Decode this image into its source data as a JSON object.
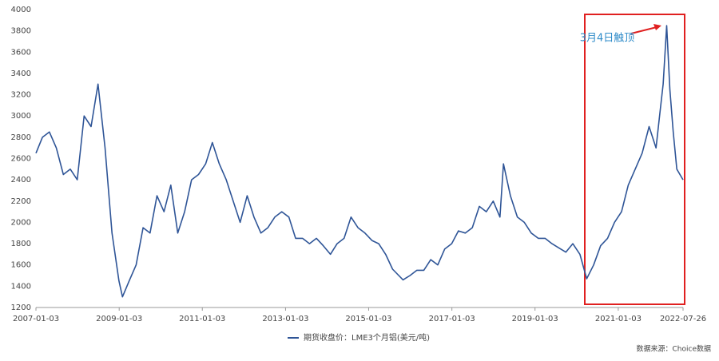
{
  "chart_data": {
    "type": "line",
    "legend": "期货收盘价：LME3个月铝(美元/吨)",
    "annotation": "3月4日触顶",
    "source": "数据来源：Choice数据",
    "x": [
      "2007-01-03",
      "2007-03",
      "2007-05",
      "2007-07",
      "2007-09",
      "2007-11",
      "2008-01",
      "2008-03",
      "2008-05",
      "2008-07",
      "2008-09",
      "2008-11",
      "2009-01",
      "2009-02",
      "2009-04",
      "2009-06",
      "2009-08",
      "2009-10",
      "2009-12",
      "2010-02",
      "2010-04",
      "2010-06",
      "2010-08",
      "2010-10",
      "2010-12",
      "2011-02",
      "2011-04",
      "2011-06",
      "2011-08",
      "2011-10",
      "2011-12",
      "2012-02",
      "2012-04",
      "2012-06",
      "2012-08",
      "2012-10",
      "2012-12",
      "2013-02",
      "2013-04",
      "2013-06",
      "2013-08",
      "2013-10",
      "2013-12",
      "2014-02",
      "2014-04",
      "2014-06",
      "2014-08",
      "2014-10",
      "2014-12",
      "2015-02",
      "2015-04",
      "2015-06",
      "2015-08",
      "2015-11",
      "2016-01",
      "2016-03",
      "2016-05",
      "2016-07",
      "2016-09",
      "2016-11",
      "2017-01",
      "2017-03",
      "2017-05",
      "2017-07",
      "2017-09",
      "2017-11",
      "2018-01",
      "2018-03",
      "2018-04",
      "2018-06",
      "2018-08",
      "2018-10",
      "2018-12",
      "2019-02",
      "2019-04",
      "2019-06",
      "2019-08",
      "2019-10",
      "2019-12",
      "2020-02",
      "2020-04",
      "2020-06",
      "2020-08",
      "2020-10",
      "2020-12",
      "2021-02",
      "2021-04",
      "2021-06",
      "2021-08",
      "2021-10",
      "2021-12",
      "2022-01",
      "2022-02",
      "2022-03-04",
      "2022-04",
      "2022-05",
      "2022-06",
      "2022-07-26"
    ],
    "series": [
      {
        "name": "期货收盘价：LME3个月铝(美元/吨)",
        "color": "#2f5597",
        "values": [
          2650,
          2800,
          2850,
          2700,
          2450,
          2500,
          2400,
          3000,
          2900,
          3300,
          2700,
          1900,
          1450,
          1300,
          1450,
          1600,
          1950,
          1900,
          2250,
          2100,
          2350,
          1900,
          2100,
          2400,
          2450,
          2550,
          2750,
          2550,
          2400,
          2200,
          2000,
          2250,
          2050,
          1900,
          1950,
          2050,
          2100,
          2050,
          1850,
          1850,
          1800,
          1850,
          1780,
          1700,
          1800,
          1850,
          2050,
          1950,
          1900,
          1830,
          1800,
          1700,
          1560,
          1460,
          1500,
          1550,
          1550,
          1650,
          1600,
          1750,
          1800,
          1920,
          1900,
          1950,
          2150,
          2100,
          2200,
          2050,
          2550,
          2250,
          2050,
          2000,
          1900,
          1850,
          1850,
          1800,
          1760,
          1720,
          1800,
          1700,
          1470,
          1600,
          1780,
          1850,
          2000,
          2100,
          2350,
          2500,
          2650,
          2900,
          2700,
          3000,
          3300,
          3850,
          3250,
          2850,
          2500,
          2400
        ]
      }
    ],
    "xlim": [
      "2007-01-03",
      "2022-07-26"
    ],
    "xticks": [
      "2007-01-03",
      "2009-01-03",
      "2011-01-03",
      "2013-01-03",
      "2015-01-03",
      "2017-01-03",
      "2019-01-03",
      "2021-01-03",
      "2022-07-26"
    ],
    "ylim": [
      1200,
      4000
    ],
    "yticks": [
      1200,
      1400,
      1600,
      1800,
      2000,
      2200,
      2400,
      2600,
      2800,
      3000,
      3200,
      3400,
      3600,
      3800,
      4000
    ],
    "grid": false
  }
}
